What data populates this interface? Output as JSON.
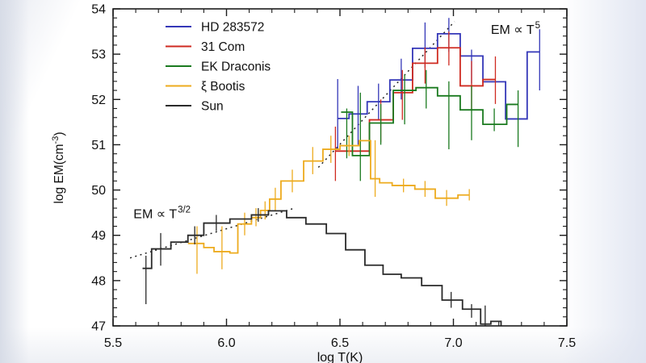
{
  "chart_data": {
    "type": "step-line",
    "title": "",
    "xlabel": "log T(K)",
    "ylabel_prefix": "log EM(cm",
    "ylabel_sup": "-3",
    "ylabel_suffix": ")",
    "xlim": [
      5.5,
      7.5
    ],
    "ylim": [
      47,
      54
    ],
    "x_minor": 0.1,
    "y_minor": 0.2,
    "grid": false,
    "legend_position": "upper-left",
    "frame_color": "#1c1c1c",
    "text_color": "#111111",
    "xticks": [
      {
        "v": 5.5,
        "label": "5.5"
      },
      {
        "v": 6.0,
        "label": "6.0"
      },
      {
        "v": 6.5,
        "label": "6.5"
      },
      {
        "v": 7.0,
        "label": "7.0"
      },
      {
        "v": 7.5,
        "label": "7.5"
      }
    ],
    "yticks": [
      {
        "v": 47,
        "label": "47"
      },
      {
        "v": 48,
        "label": "48"
      },
      {
        "v": 49,
        "label": "49"
      },
      {
        "v": 50,
        "label": "50"
      },
      {
        "v": 51,
        "label": "51"
      },
      {
        "v": 52,
        "label": "52"
      },
      {
        "v": 53,
        "label": "53"
      },
      {
        "v": 54,
        "label": "54"
      }
    ],
    "series": [
      {
        "name": "HD 283572",
        "slug": "hd-283572",
        "color": "#3437b8",
        "end_drop": false,
        "bins": [
          [
            6.49,
            6.54,
            51.58
          ],
          [
            6.54,
            6.62,
            51.68
          ],
          [
            6.62,
            6.72,
            51.95
          ],
          [
            6.72,
            6.82,
            52.43
          ],
          [
            6.82,
            6.93,
            53.13
          ],
          [
            6.93,
            7.03,
            53.45
          ],
          [
            7.03,
            7.13,
            52.96
          ],
          [
            7.13,
            7.23,
            52.39
          ],
          [
            7.23,
            7.325,
            51.57
          ],
          [
            7.325,
            7.38,
            53.05
          ]
        ],
        "errors": [
          [
            6.49,
            50.9,
            52.45
          ],
          [
            6.58,
            51.0,
            52.3
          ],
          [
            6.67,
            51.55,
            52.35
          ],
          [
            6.77,
            52.0,
            52.9
          ],
          [
            6.875,
            52.7,
            53.7
          ],
          [
            6.98,
            53.05,
            53.8
          ],
          [
            7.08,
            52.35,
            53.1
          ],
          [
            7.38,
            52.2,
            53.55
          ]
        ]
      },
      {
        "name": "31 Com",
        "slug": "31-com",
        "color": "#cf2a20",
        "end_drop": false,
        "bins": [
          [
            6.48,
            6.63,
            50.86
          ],
          [
            6.63,
            6.735,
            51.55
          ],
          [
            6.735,
            6.82,
            52.15
          ],
          [
            6.82,
            6.93,
            52.8
          ],
          [
            6.93,
            7.03,
            53.14
          ],
          [
            7.03,
            7.13,
            52.3
          ],
          [
            7.13,
            7.185,
            52.44
          ]
        ],
        "errors": [
          [
            6.48,
            50.2,
            51.4
          ],
          [
            6.68,
            51.05,
            52.0
          ],
          [
            6.775,
            51.55,
            52.65
          ],
          [
            6.875,
            52.35,
            53.15
          ],
          [
            6.98,
            52.75,
            53.5
          ],
          [
            7.08,
            51.75,
            52.85
          ],
          [
            7.185,
            51.9,
            52.95
          ]
        ]
      },
      {
        "name": "EK Draconis",
        "slug": "ek-draconis",
        "color": "#1a7a1f",
        "end_drop": false,
        "bins": [
          [
            6.505,
            6.555,
            51.72
          ],
          [
            6.555,
            6.63,
            50.76
          ],
          [
            6.63,
            6.735,
            51.48
          ],
          [
            6.735,
            6.835,
            52.2
          ],
          [
            6.835,
            6.93,
            52.26
          ],
          [
            6.93,
            7.03,
            52.08
          ],
          [
            7.03,
            7.13,
            51.77
          ],
          [
            7.13,
            7.235,
            51.45
          ],
          [
            7.235,
            7.285,
            51.89
          ]
        ],
        "errors": [
          [
            6.53,
            50.7,
            51.8
          ],
          [
            6.59,
            50.2,
            52.15
          ],
          [
            6.68,
            51.0,
            51.9
          ],
          [
            6.785,
            51.45,
            52.55
          ],
          [
            6.88,
            51.8,
            52.65
          ],
          [
            6.98,
            50.9,
            52.4
          ],
          [
            7.08,
            51.1,
            52.3
          ],
          [
            7.18,
            51.3,
            51.8
          ],
          [
            7.285,
            50.95,
            52.2
          ]
        ]
      },
      {
        "name": "ξ Bootis",
        "slug": "xi-bootis",
        "color": "#edab1e",
        "end_drop": false,
        "bins": [
          [
            5.83,
            5.9,
            48.82
          ],
          [
            5.9,
            5.945,
            48.73
          ],
          [
            5.945,
            6.015,
            48.64
          ],
          [
            6.015,
            6.05,
            48.61
          ],
          [
            6.05,
            6.11,
            49.25
          ],
          [
            6.11,
            6.15,
            49.39
          ],
          [
            6.15,
            6.19,
            49.55
          ],
          [
            6.19,
            6.24,
            49.8
          ],
          [
            6.24,
            6.34,
            50.2
          ],
          [
            6.34,
            6.425,
            50.64
          ],
          [
            6.425,
            6.5,
            50.9
          ],
          [
            6.5,
            6.585,
            50.98
          ],
          [
            6.585,
            6.635,
            51.09
          ],
          [
            6.635,
            6.675,
            50.25
          ],
          [
            6.675,
            6.73,
            50.16
          ],
          [
            6.73,
            6.83,
            50.1
          ],
          [
            6.83,
            6.92,
            50.02
          ],
          [
            6.92,
            7.02,
            49.82
          ],
          [
            7.02,
            7.07,
            49.89
          ]
        ],
        "errors": [
          [
            5.87,
            48.15,
            49.2
          ],
          [
            5.98,
            48.25,
            49.2
          ],
          [
            6.08,
            49.0,
            49.5
          ],
          [
            6.13,
            49.2,
            49.6
          ],
          [
            6.17,
            49.35,
            49.75
          ],
          [
            6.215,
            49.55,
            50.05
          ],
          [
            6.29,
            49.95,
            50.45
          ],
          [
            6.38,
            50.35,
            50.95
          ],
          [
            6.46,
            50.6,
            51.2
          ],
          [
            6.54,
            50.75,
            51.2
          ],
          [
            6.655,
            49.85,
            51.1
          ],
          [
            6.78,
            49.95,
            50.25
          ],
          [
            6.875,
            49.85,
            50.2
          ],
          [
            6.97,
            49.65,
            50.0
          ],
          [
            7.07,
            49.77,
            50.02
          ]
        ]
      },
      {
        "name": "Sun",
        "slug": "sun",
        "color": "#2a2a2a",
        "end_drop": true,
        "bins": [
          [
            5.63,
            5.67,
            48.27
          ],
          [
            5.67,
            5.755,
            48.7
          ],
          [
            5.755,
            5.83,
            48.85
          ],
          [
            5.83,
            5.9,
            49.0
          ],
          [
            5.9,
            6.015,
            49.27
          ],
          [
            6.015,
            6.11,
            49.36
          ],
          [
            6.11,
            6.185,
            49.45
          ],
          [
            6.185,
            6.265,
            49.54
          ],
          [
            6.265,
            6.35,
            49.39
          ],
          [
            6.35,
            6.44,
            49.25
          ],
          [
            6.44,
            6.525,
            49.04
          ],
          [
            6.525,
            6.61,
            48.68
          ],
          [
            6.61,
            6.69,
            48.34
          ],
          [
            6.69,
            6.77,
            48.14
          ],
          [
            6.77,
            6.86,
            48.06
          ],
          [
            6.86,
            6.95,
            47.89
          ],
          [
            6.95,
            7.04,
            47.57
          ],
          [
            7.04,
            7.12,
            47.37
          ],
          [
            7.12,
            7.165,
            47.04
          ],
          [
            7.165,
            7.21,
            47.1
          ]
        ],
        "errors": [
          [
            5.645,
            47.48,
            48.55
          ],
          [
            5.71,
            48.33,
            49.05
          ],
          [
            5.86,
            48.8,
            49.2
          ],
          [
            5.955,
            49.1,
            49.45
          ],
          [
            6.14,
            49.3,
            49.6
          ],
          [
            6.99,
            47.4,
            47.75
          ],
          [
            7.08,
            47.18,
            47.48
          ],
          [
            7.14,
            47.0,
            47.45
          ]
        ]
      }
    ],
    "ref_lines": [
      {
        "base": "EM ∝ T",
        "sup": "3/2",
        "x1": 5.575,
        "y1": 48.5,
        "x2": 6.3,
        "y2": 49.6,
        "label_x": 5.59,
        "label_y": 49.38,
        "color": "#222222"
      },
      {
        "base": "EM ∝ T",
        "sup": "5",
        "x1": 6.405,
        "y1": 50.5,
        "x2": 7.005,
        "y2": 53.72,
        "label_x": 7.165,
        "label_y": 53.45,
        "color": "#222222"
      }
    ]
  }
}
